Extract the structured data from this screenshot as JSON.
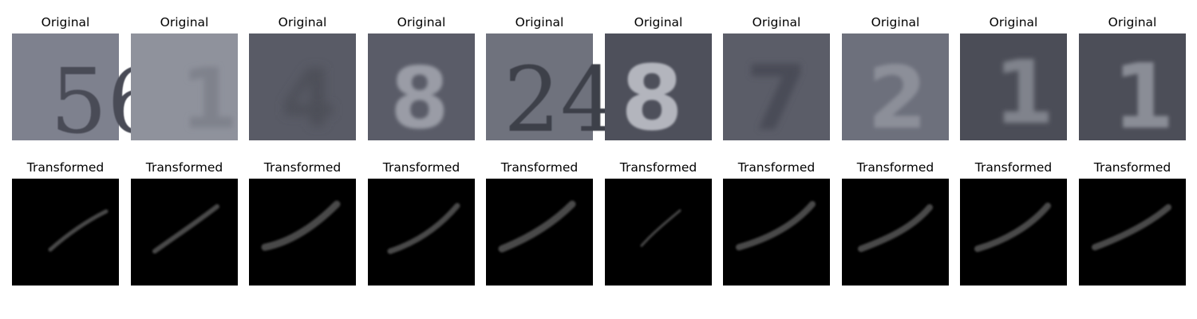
{
  "rows": [
    {
      "panel_title": "Original",
      "panels": [
        {
          "digits": "56",
          "background": "#7e818e",
          "ink": "#4a4c56",
          "glyph_style": "serif-dark"
        },
        {
          "digits": "1",
          "background": "#8f929c",
          "ink": "#7f828c",
          "glyph_style": "faint"
        },
        {
          "digits": "4",
          "background": "#595b66",
          "ink": "#4d4f59",
          "glyph_style": "blurred"
        },
        {
          "digits": "8",
          "background": "#5a5c68",
          "ink": "#9a9ca6",
          "glyph_style": "light"
        },
        {
          "digits": "24",
          "background": "#6f727d",
          "ink": "#3e4049",
          "glyph_style": "serif-dark"
        },
        {
          "digits": "8",
          "background": "#4e505b",
          "ink": "#b3b5bd",
          "glyph_style": "bright"
        },
        {
          "digits": "7",
          "background": "#5b5d68",
          "ink": "#4a4c56",
          "glyph_style": "blurred"
        },
        {
          "digits": "2",
          "background": "#6d707c",
          "ink": "#8c8f99",
          "glyph_style": "light"
        },
        {
          "digits": "1",
          "background": "#4b4d57",
          "ink": "#80838c",
          "glyph_style": "light"
        },
        {
          "digits": "1",
          "background": "#4c4e58",
          "ink": "#8a8d96",
          "glyph_style": "light"
        }
      ]
    },
    {
      "panel_title": "Transformed",
      "panels": [
        {
          "stroke": "#4a4a4a",
          "background": "#000000"
        },
        {
          "stroke": "#4a4a4a",
          "background": "#000000"
        },
        {
          "stroke": "#4a4a4a",
          "background": "#000000"
        },
        {
          "stroke": "#4a4a4a",
          "background": "#000000"
        },
        {
          "stroke": "#4a4a4a",
          "background": "#000000"
        },
        {
          "stroke": "#4a4a4a",
          "background": "#000000"
        },
        {
          "stroke": "#4a4a4a",
          "background": "#000000"
        },
        {
          "stroke": "#4a4a4a",
          "background": "#000000"
        },
        {
          "stroke": "#4a4a4a",
          "background": "#000000"
        },
        {
          "stroke": "#4a4a4a",
          "background": "#000000"
        }
      ]
    }
  ]
}
